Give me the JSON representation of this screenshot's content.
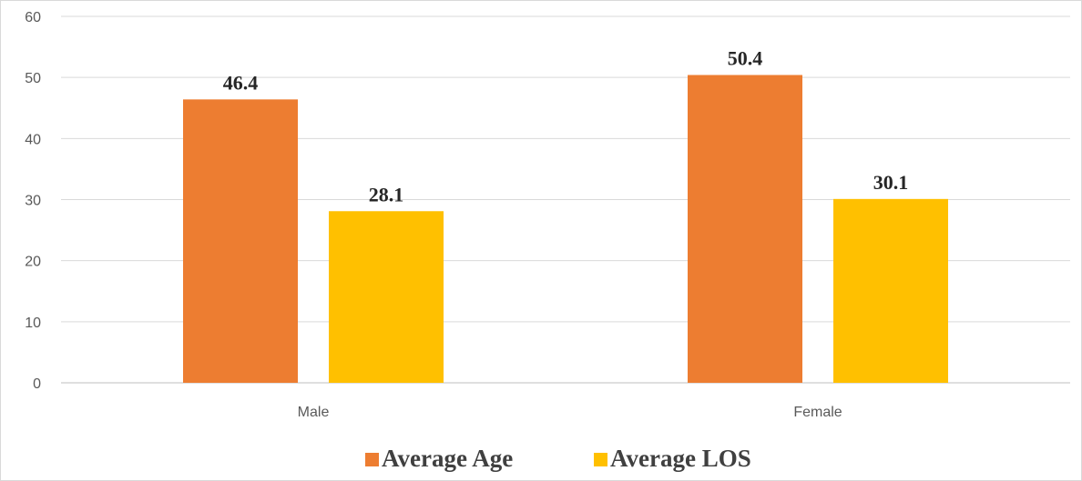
{
  "chart_data": {
    "type": "bar",
    "title": "",
    "xlabel": "",
    "ylabel": "",
    "categories": [
      "Male",
      "Female"
    ],
    "series": [
      {
        "name": "Average Age",
        "values": [
          46.4,
          50.4
        ],
        "color": "#ED7D31"
      },
      {
        "name": "Average LOS",
        "values": [
          28.1,
          30.1
        ],
        "color": "#FFC000"
      }
    ],
    "ylim": [
      0,
      60
    ],
    "yticks": [
      0,
      10,
      20,
      30,
      40,
      50,
      60
    ],
    "ytick_labels": [
      "0",
      "10",
      "20",
      "30",
      "40",
      "50",
      "60"
    ],
    "data_labels": [
      [
        "46.4",
        "50.4"
      ],
      [
        "28.1",
        "30.1"
      ]
    ],
    "grid": true,
    "legend_position": "bottom",
    "gridline_color": "#d9d9d9",
    "axis_color": "#bfbfbf"
  }
}
